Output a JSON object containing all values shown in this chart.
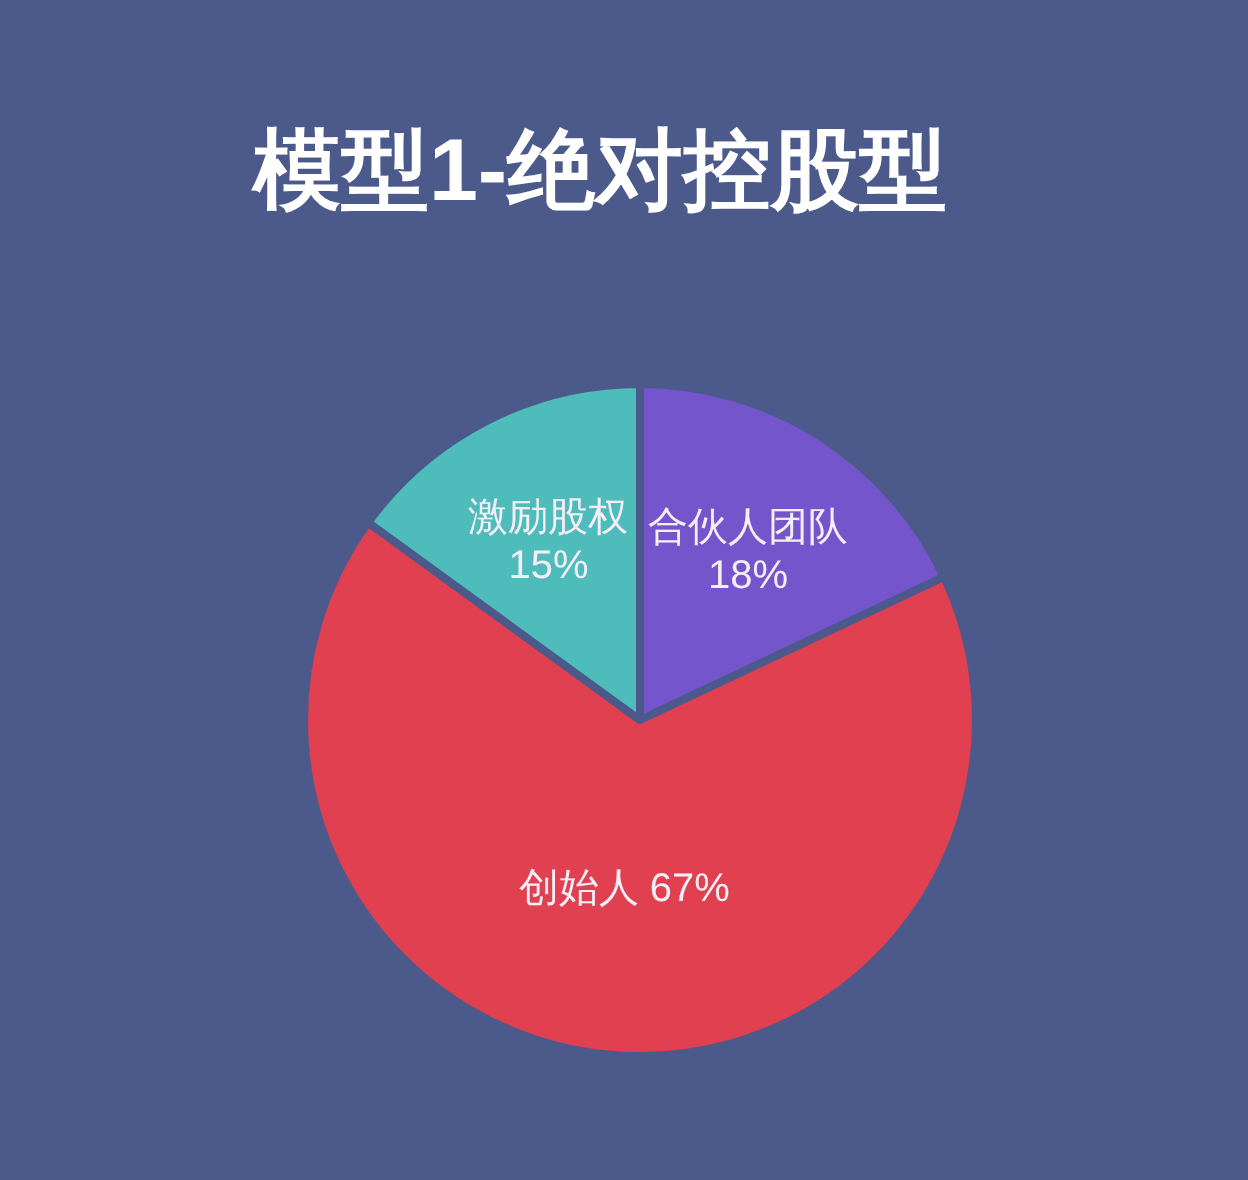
{
  "chart_data": {
    "type": "pie",
    "title": "模型1-绝对控股型",
    "categories": [
      "合伙人团队",
      "创始人",
      "激励股权"
    ],
    "values": [
      18,
      67,
      15
    ],
    "colors": [
      "#7455cc",
      "#e0404f",
      "#4fbcbc"
    ],
    "value_labels": [
      "18%",
      "67%",
      "15%"
    ]
  }
}
